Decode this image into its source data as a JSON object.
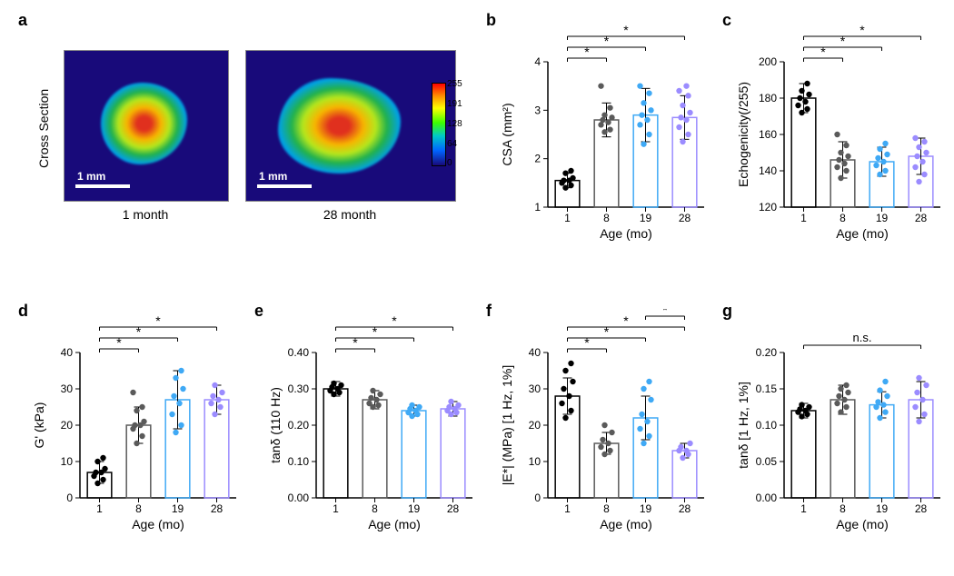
{
  "panel_labels": {
    "a": "a",
    "b": "b",
    "c": "c",
    "d": "d",
    "e": "e",
    "f": "f",
    "g": "g"
  },
  "panel_a": {
    "left_caption": "1 month",
    "right_caption": "28 month",
    "side_label": "Cross Section",
    "scale_label": "1 mm",
    "colorbar": {
      "ticks": [
        "255",
        "191",
        "128",
        "64",
        "0"
      ]
    }
  },
  "categories": [
    "1",
    "8",
    "19",
    "28"
  ],
  "category_colors": [
    "#000000",
    "#5a5a5a",
    "#3fa9f5",
    "#9b8cff"
  ],
  "bar_border_color": "#333333",
  "bar_fill": "#ffffff",
  "point_radius": 3.2,
  "panel_b": {
    "type": "scatter-bar",
    "title": "b",
    "ylabel": "CSA  (mm²)",
    "xlabel": "Age (mo)",
    "ylim": [
      1,
      4
    ],
    "yticks": [
      1,
      2,
      3,
      4
    ],
    "bars": [
      1.55,
      2.8,
      2.9,
      2.85
    ],
    "err": [
      0.15,
      0.35,
      0.55,
      0.45
    ],
    "points": [
      [
        1.4,
        1.45,
        1.5,
        1.55,
        1.55,
        1.6,
        1.7,
        1.75
      ],
      [
        2.55,
        2.6,
        2.7,
        2.75,
        2.8,
        2.85,
        2.9,
        3.05,
        3.5
      ],
      [
        2.3,
        2.5,
        2.7,
        2.8,
        2.9,
        3.0,
        3.15,
        3.35,
        3.5
      ],
      [
        2.35,
        2.5,
        2.65,
        2.8,
        2.85,
        2.95,
        3.1,
        3.3,
        3.4,
        3.5
      ]
    ],
    "sig": [
      [
        0,
        1,
        "*"
      ],
      [
        0,
        2,
        "*"
      ],
      [
        0,
        3,
        "*"
      ]
    ]
  },
  "panel_c": {
    "type": "scatter-bar",
    "ylabel": "Echogenicity(/255)",
    "xlabel": "Age (mo)",
    "ylim": [
      120,
      200
    ],
    "yticks": [
      120,
      140,
      160,
      180,
      200
    ],
    "bars": [
      180,
      146,
      145,
      148
    ],
    "err": [
      8,
      10,
      8,
      10
    ],
    "points": [
      [
        172,
        174,
        176,
        178,
        180,
        182,
        184,
        188
      ],
      [
        136,
        140,
        142,
        144,
        146,
        148,
        150,
        154,
        160
      ],
      [
        138,
        140,
        143,
        145,
        147,
        149,
        152,
        155
      ],
      [
        134,
        138,
        142,
        145,
        148,
        150,
        153,
        156,
        158
      ]
    ],
    "sig": [
      [
        0,
        1,
        "*"
      ],
      [
        0,
        2,
        "*"
      ],
      [
        0,
        3,
        "*"
      ]
    ]
  },
  "panel_d": {
    "type": "scatter-bar",
    "ylabel": "G' (kPa)",
    "xlabel": "Age (mo)",
    "ylim": [
      0,
      40
    ],
    "yticks": [
      0,
      10,
      20,
      30,
      40
    ],
    "bars": [
      7,
      20,
      27,
      27
    ],
    "err": [
      3,
      5,
      8,
      4
    ],
    "points": [
      [
        4,
        5,
        6,
        7,
        7,
        8,
        10,
        11
      ],
      [
        15,
        17,
        19,
        20,
        20,
        21,
        24,
        25,
        29
      ],
      [
        18,
        20,
        23,
        26,
        28,
        30,
        33,
        35
      ],
      [
        23,
        25,
        26,
        27,
        28,
        29,
        31
      ]
    ],
    "sig": [
      [
        0,
        1,
        "*"
      ],
      [
        0,
        2,
        "*"
      ],
      [
        0,
        3,
        "*"
      ]
    ]
  },
  "panel_e": {
    "type": "scatter-bar",
    "ylabel": "tanδ (110 Hz)",
    "xlabel": "Age (mo)",
    "ylim": [
      0,
      0.4
    ],
    "yticks": [
      0,
      0.1,
      0.2,
      0.3,
      0.4
    ],
    "bars": [
      0.3,
      0.27,
      0.24,
      0.245
    ],
    "err": [
      0.02,
      0.025,
      0.015,
      0.02
    ],
    "points": [
      [
        0.285,
        0.29,
        0.295,
        0.3,
        0.305,
        0.31,
        0.315
      ],
      [
        0.25,
        0.255,
        0.26,
        0.27,
        0.275,
        0.285,
        0.295
      ],
      [
        0.225,
        0.23,
        0.235,
        0.24,
        0.245,
        0.25,
        0.255
      ],
      [
        0.23,
        0.235,
        0.24,
        0.245,
        0.25,
        0.255,
        0.265
      ]
    ],
    "sig": [
      [
        0,
        1,
        "*"
      ],
      [
        0,
        2,
        "*"
      ],
      [
        0,
        3,
        "*"
      ]
    ]
  },
  "panel_f": {
    "type": "scatter-bar",
    "ylabel": "|E*| (MPa) [1 Hz, 1%]",
    "xlabel": "Age (mo)",
    "ylim": [
      0,
      40
    ],
    "yticks": [
      0,
      10,
      20,
      30,
      40
    ],
    "bars": [
      28,
      15,
      22,
      13
    ],
    "err": [
      5,
      3,
      6,
      2
    ],
    "points": [
      [
        22,
        24,
        26,
        28,
        30,
        32,
        35,
        37
      ],
      [
        12,
        13,
        14,
        15,
        16,
        18,
        20
      ],
      [
        15,
        17,
        19,
        21,
        23,
        27,
        30,
        32
      ],
      [
        11,
        12,
        13,
        13,
        14,
        15
      ]
    ],
    "sig": [
      [
        0,
        1,
        "*"
      ],
      [
        0,
        2,
        "*"
      ],
      [
        0,
        3,
        "*"
      ],
      [
        2,
        3,
        "*"
      ]
    ]
  },
  "panel_g": {
    "type": "scatter-bar",
    "ylabel": "tanδ [1 Hz, 1%]",
    "xlabel": "Age (mo)",
    "ylim": [
      0,
      0.2
    ],
    "yticks": [
      0,
      0.05,
      0.1,
      0.15,
      0.2
    ],
    "bars": [
      0.12,
      0.135,
      0.128,
      0.135
    ],
    "err": [
      0.01,
      0.02,
      0.018,
      0.025
    ],
    "points": [
      [
        0.112,
        0.115,
        0.118,
        0.12,
        0.122,
        0.125,
        0.128
      ],
      [
        0.118,
        0.125,
        0.13,
        0.135,
        0.14,
        0.145,
        0.15,
        0.155
      ],
      [
        0.11,
        0.118,
        0.125,
        0.128,
        0.132,
        0.14,
        0.148,
        0.16
      ],
      [
        0.105,
        0.115,
        0.125,
        0.135,
        0.145,
        0.155,
        0.165
      ]
    ],
    "sig_ns": "n.s."
  }
}
